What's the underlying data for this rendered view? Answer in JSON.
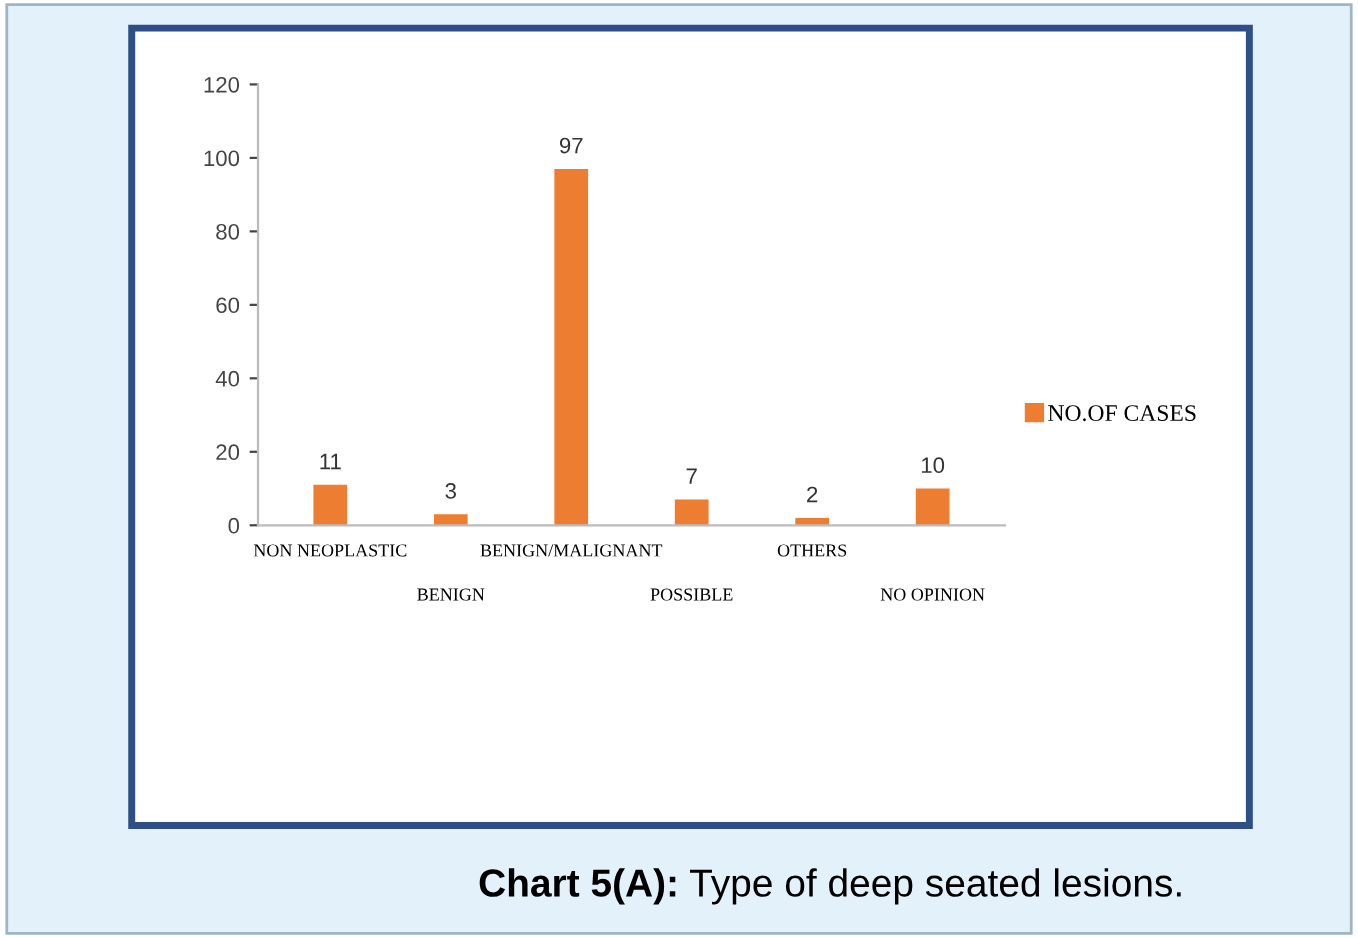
{
  "chart_data": {
    "type": "bar",
    "title": "Chart 5(A): Type of deep seated lesions.",
    "categories": [
      "NON NEOPLASTIC",
      "BENIGN",
      "BENIGN/MALIGNANT",
      "POSSIBLE",
      "OTHERS",
      "NO OPINION"
    ],
    "series": [
      {
        "name": "NO.OF CASES",
        "color": "#ed7d31",
        "values": [
          11,
          3,
          97,
          7,
          2,
          10
        ]
      }
    ],
    "ylim": [
      0,
      120
    ],
    "yticks": [
      0,
      20,
      40,
      60,
      80,
      100,
      120
    ],
    "data_labels": true,
    "grid": false,
    "legend": "right"
  }
}
